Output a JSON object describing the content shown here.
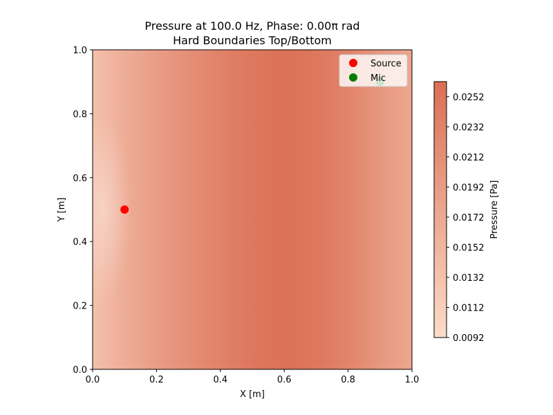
{
  "chart_data": {
    "type": "heatmap",
    "title": "Pressure at 100.0 Hz, Phase: 0.00π rad",
    "subtitle": "Hard Boundaries Top/Bottom",
    "xlabel": "X [m]",
    "ylabel": "Y [m]",
    "xlim": [
      0.0,
      1.0
    ],
    "ylim": [
      0.0,
      1.0
    ],
    "x_ticks": [
      "0.0",
      "0.2",
      "0.4",
      "0.6",
      "0.8",
      "1.0"
    ],
    "y_ticks": [
      "0.0",
      "0.2",
      "0.4",
      "0.6",
      "0.8",
      "1.0"
    ],
    "grid": false,
    "colorbar": {
      "label": "Pressure [Pa]",
      "min": 0.0092,
      "max": 0.0262,
      "ticks": [
        "0.0092",
        "0.0112",
        "0.0132",
        "0.0152",
        "0.0172",
        "0.0192",
        "0.0212",
        "0.0232",
        "0.0252"
      ],
      "color_low": "#fcdcc8",
      "color_high": "#db6f55"
    },
    "field_profile": {
      "x": [
        0.0,
        0.1,
        0.2,
        0.3,
        0.4,
        0.5,
        0.6,
        0.7,
        0.8,
        0.9,
        1.0
      ],
      "pressure": [
        0.0135,
        0.0165,
        0.019,
        0.0212,
        0.0232,
        0.025,
        0.0258,
        0.025,
        0.023,
        0.02,
        0.0175
      ]
    },
    "markers": [
      {
        "name": "Source",
        "x": 0.1,
        "y": 0.5,
        "color": "#ff0000"
      },
      {
        "name": "Mic",
        "x": 0.9,
        "y": 0.9,
        "color": "#008000"
      }
    ],
    "legend_placement": "top-right"
  }
}
